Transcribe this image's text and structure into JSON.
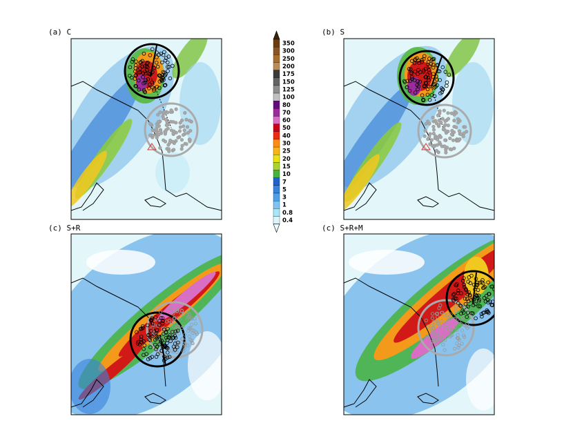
{
  "chart_data": {
    "type": "heatmap",
    "colorbar": {
      "levels": [
        "350",
        "300",
        "250",
        "200",
        "175",
        "150",
        "125",
        "100",
        "80",
        "70",
        "60",
        "50",
        "40",
        "30",
        "25",
        "20",
        "15",
        "10",
        "7",
        "5",
        "3",
        "1",
        "0.8",
        "0.4"
      ],
      "colors": [
        "#6b3c0e",
        "#8a5526",
        "#a5702f",
        "#b98c58",
        "#3a3a3a",
        "#646464",
        "#8d8d8d",
        "#c0c0c0",
        "#620d7c",
        "#9a2d9a",
        "#d86fc4",
        "#c8001a",
        "#ee2a13",
        "#ff8a16",
        "#f7b51c",
        "#e9e214",
        "#a8d62a",
        "#45b33c",
        "#2163cc",
        "#3a82dc",
        "#4fa0e6",
        "#7ec4f2",
        "#a9e7f8",
        "#d9f7fb"
      ],
      "top_arrow_color": "#3b200a",
      "bottom_arrow_color": "#eafcff"
    },
    "panels": [
      {
        "label": "(a) C",
        "black_circle": {
          "rain_level": "80"
        },
        "gray_circle": {
          "rain_level": "0.4"
        }
      },
      {
        "label": "(b) S",
        "black_circle": {
          "rain_level": "80"
        },
        "gray_circle": {
          "rain_level": "0.4"
        }
      },
      {
        "label": "(c) S+R",
        "black_circle": {
          "rain_level": "70"
        },
        "gray_circle": {
          "rain_level": "80"
        }
      },
      {
        "label": "(c) S+R+M",
        "black_circle": {
          "rain_level": "70"
        },
        "gray_circle": {
          "rain_level": "80"
        }
      }
    ],
    "legend_placement": "center",
    "grid": false
  }
}
